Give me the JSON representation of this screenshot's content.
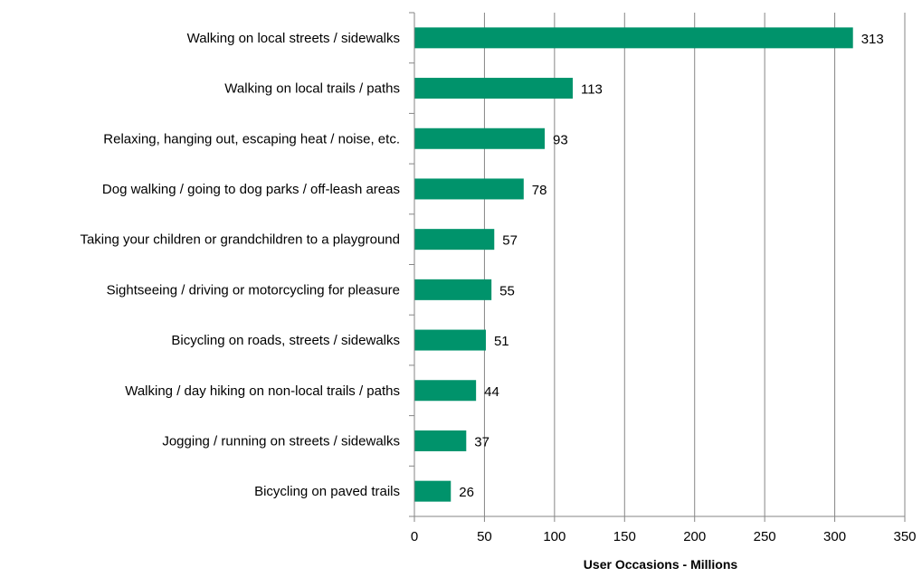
{
  "chart_data": {
    "type": "bar",
    "orientation": "horizontal",
    "categories": [
      "Walking on local streets / sidewalks",
      "Walking on local trails / paths",
      "Relaxing, hanging out, escaping heat / noise, etc.",
      "Dog walking / going to dog parks / off-leash areas",
      "Taking your children or grandchildren to a playground",
      "Sightseeing / driving or motorcycling for pleasure",
      "Bicycling on roads, streets / sidewalks",
      "Walking / day hiking on non-local trails / paths",
      "Jogging / running on streets / sidewalks",
      "Bicycling on paved trails"
    ],
    "values": [
      313,
      113,
      93,
      78,
      57,
      55,
      51,
      44,
      37,
      26
    ],
    "xlabel": "User Occasions - Millions",
    "ylabel": "",
    "xlim": [
      0,
      350
    ],
    "xticks": [
      0,
      50,
      100,
      150,
      200,
      250,
      300,
      350
    ],
    "grid": "vertical",
    "legend": "none",
    "bar_color": "#00936b",
    "grid_color": "#868686"
  }
}
